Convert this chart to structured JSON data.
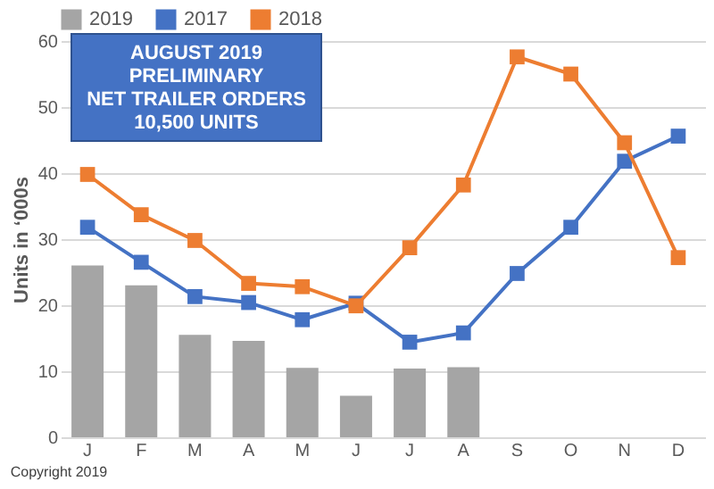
{
  "chart_data": {
    "type": "line",
    "title": "AUGUST 2019\nPRELIMINARY\nNET TRAILER ORDERS\n10,500 UNITS",
    "ylabel": "Units in ‘000s",
    "categories": [
      "J",
      "F",
      "M",
      "A",
      "M",
      "J",
      "J",
      "A",
      "S",
      "O",
      "N",
      "D"
    ],
    "series": [
      {
        "name": "2019",
        "type": "bar",
        "color": "#a5a5a5",
        "values": [
          26,
          23,
          15.5,
          14.6,
          10.5,
          6.3,
          10.4,
          10.6,
          null,
          null,
          null,
          null
        ]
      },
      {
        "name": "2017",
        "color": "#4472c4",
        "values": [
          31.8,
          26.5,
          21.3,
          20.4,
          17.8,
          20.3,
          14.4,
          15.8,
          24.8,
          31.8,
          41.8,
          45.6
        ]
      },
      {
        "name": "2018",
        "color": "#ed7d31",
        "values": [
          39.8,
          33.7,
          29.8,
          23.3,
          22.8,
          19.9,
          28.7,
          38.2,
          57.6,
          55,
          44.6,
          27.2
        ]
      }
    ],
    "ylim": [
      0,
      60
    ],
    "yticks": [
      0,
      10,
      20,
      30,
      40,
      50,
      60
    ],
    "grid": "y",
    "legend": "top",
    "marker": "square",
    "annotations": [
      "Copyright 2019"
    ]
  }
}
